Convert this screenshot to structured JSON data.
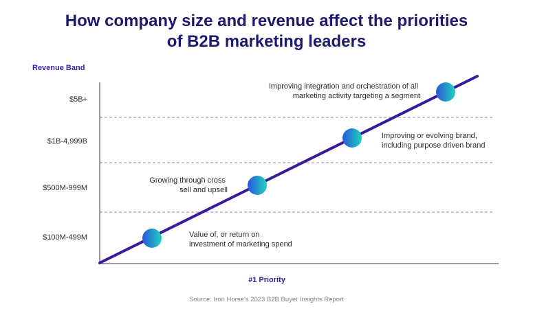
{
  "title_lines": [
    "How company size and revenue affect the priorities",
    "of B2B marketing leaders"
  ],
  "source": "Source: Iron Horse’s 2023 B2B Buyer Insights Report",
  "chart_data": {
    "type": "line",
    "ylabel": "Revenue Band",
    "xlabel": "#1 Priority",
    "categories": [
      "$100M-499M",
      "$500M-999M",
      "$1B-4,999B",
      "$5B+"
    ],
    "points": [
      {
        "band": "$100M-499M",
        "label": [
          "Value of, or return on",
          "investment of marketing spend"
        ],
        "label_side": "right"
      },
      {
        "band": "$500M-999M",
        "label": [
          "Growing through cross",
          "sell and upsell"
        ],
        "label_side": "left"
      },
      {
        "band": "$1B-4,999B",
        "label": [
          "Improving or evolving brand,",
          "including purpose driven brand"
        ],
        "label_side": "right"
      },
      {
        "band": "$5B+",
        "label": [
          "Improving integration and orchestration of all",
          "marketing activity targeting a segment"
        ],
        "label_side": "left"
      }
    ],
    "grid": "dashed horizontal separators between bands",
    "colors": {
      "title": "#1b1a6e",
      "axis_label": "#3d1fa0",
      "trend_line": "#3a1a9c",
      "marker_gradient_start": "#2a55d8",
      "marker_gradient_end": "#1fd3c0",
      "grid": "#8a86c8",
      "text": "#2b2b3a"
    }
  }
}
